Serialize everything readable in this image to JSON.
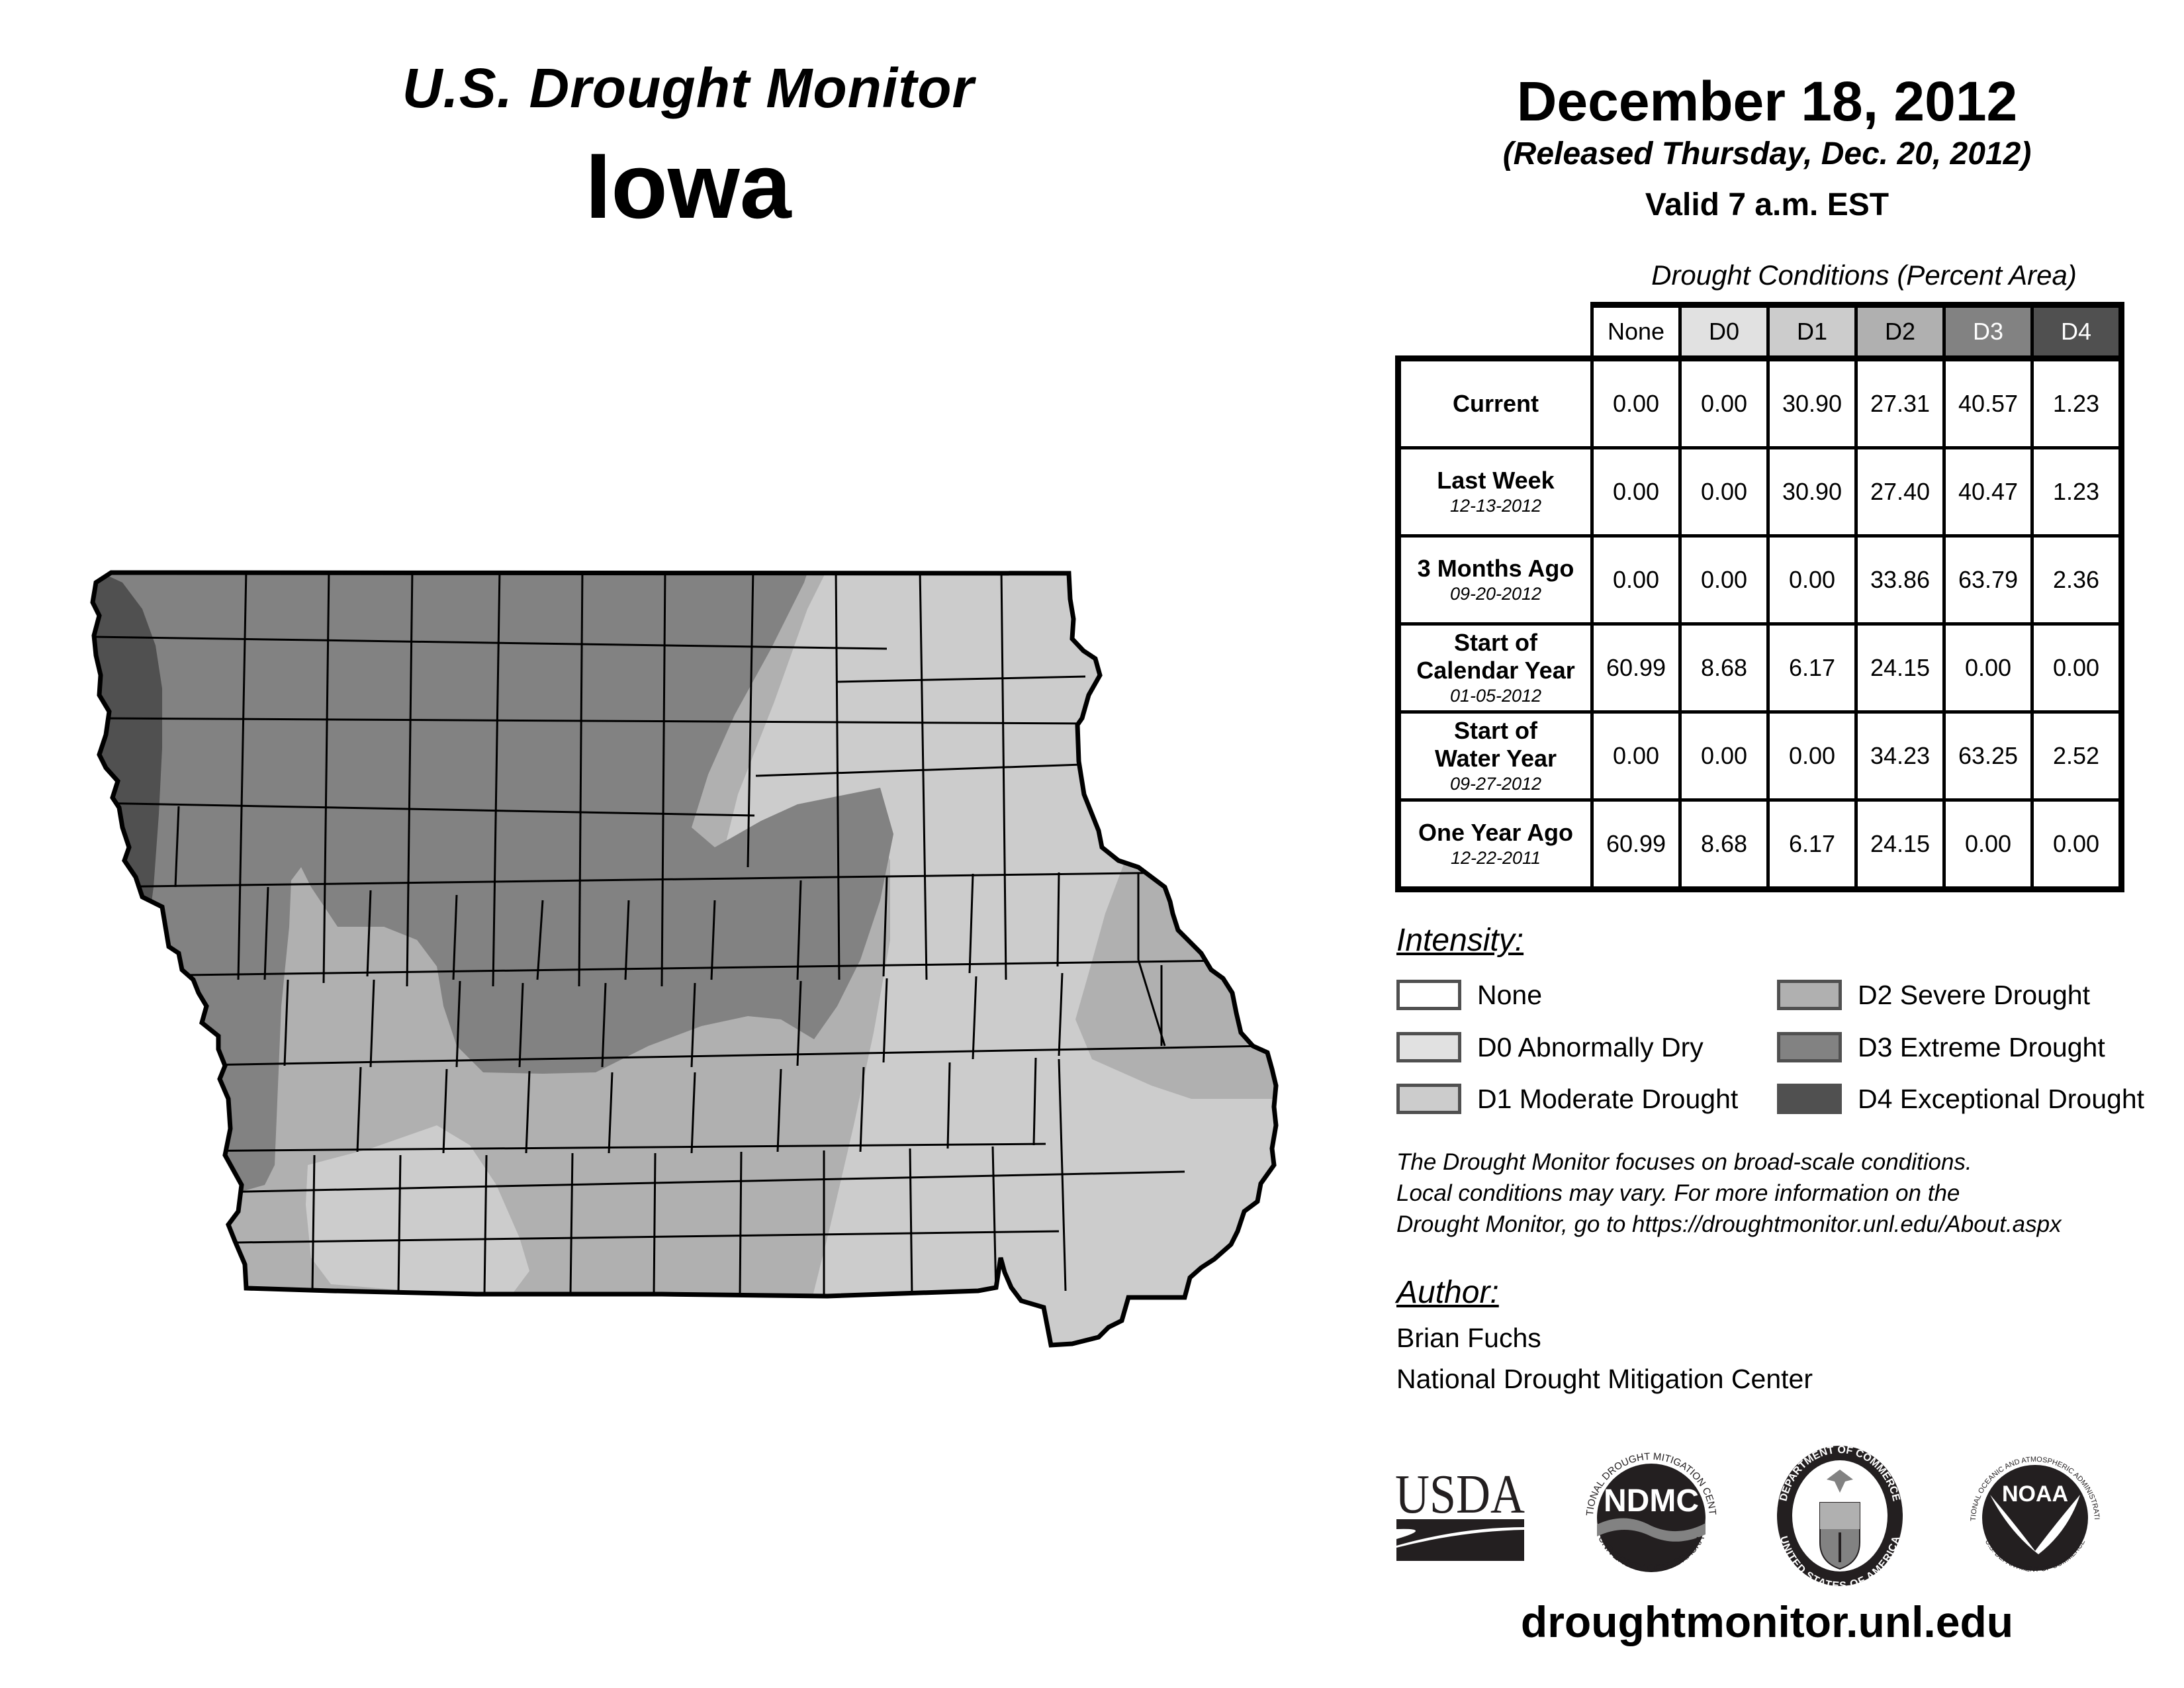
{
  "header": {
    "title": "U.S. Drought Monitor",
    "state": "Iowa",
    "date": "December 18, 2012",
    "released": "(Released Thursday, Dec. 20, 2012)",
    "valid": "Valid 7 a.m. EST"
  },
  "table": {
    "caption": "Drought Conditions (Percent Area)",
    "columns": [
      "None",
      "D0",
      "D1",
      "D2",
      "D3",
      "D4"
    ],
    "rows": [
      {
        "label": "Current",
        "date": "",
        "values": [
          "0.00",
          "0.00",
          "30.90",
          "27.31",
          "40.57",
          "1.23"
        ]
      },
      {
        "label": "Last Week",
        "date": "12-13-2012",
        "values": [
          "0.00",
          "0.00",
          "30.90",
          "27.40",
          "40.47",
          "1.23"
        ]
      },
      {
        "label": "3 Months Ago",
        "date": "09-20-2012",
        "values": [
          "0.00",
          "0.00",
          "0.00",
          "33.86",
          "63.79",
          "2.36"
        ]
      },
      {
        "label": "Start of Calendar Year",
        "date": "01-05-2012",
        "values": [
          "60.99",
          "8.68",
          "6.17",
          "24.15",
          "0.00",
          "0.00"
        ]
      },
      {
        "label": "Start of Water Year",
        "date": "09-27-2012",
        "values": [
          "0.00",
          "0.00",
          "0.00",
          "34.23",
          "63.25",
          "2.52"
        ]
      },
      {
        "label": "One Year Ago",
        "date": "12-22-2011",
        "values": [
          "60.99",
          "8.68",
          "6.17",
          "24.15",
          "0.00",
          "0.00"
        ]
      }
    ]
  },
  "legend": {
    "title": "Intensity:",
    "items": [
      {
        "label": "None",
        "color": "#ffffff"
      },
      {
        "label": "D0 Abnormally Dry",
        "color": "#e1e1e1"
      },
      {
        "label": "D1 Moderate Drought",
        "color": "#cccccc"
      },
      {
        "label": "D2 Severe Drought",
        "color": "#b0b0b0"
      },
      {
        "label": "D3 Extreme Drought",
        "color": "#828282"
      },
      {
        "label": "D4 Exceptional Drought",
        "color": "#505050"
      }
    ]
  },
  "notes": {
    "line1": "The Drought Monitor focuses on broad-scale conditions.",
    "line2": "Local conditions may vary. For more information on the",
    "line3": "Drought Monitor, go to https://droughtmonitor.unl.edu/About.aspx"
  },
  "author": {
    "title": "Author:",
    "name": "Brian Fuchs",
    "org": "National Drought Mitigation Center"
  },
  "logos": {
    "usda": "USDA",
    "ndmc": "NDMC",
    "ndmc_ring_top": "NATIONAL DROUGHT MITIGATION CENTER",
    "ndmc_ring_bottom": "UNIVERSITY OF NEBRASKA",
    "doc_ring_top": "DEPARTMENT OF COMMERCE",
    "doc_ring_bottom": "UNITED STATES OF AMERICA",
    "noaa": "NOAA",
    "noaa_ring_top": "NATIONAL OCEANIC AND ATMOSPHERIC ADMINISTRATION",
    "noaa_ring_bottom": "U.S. DEPARTMENT OF COMMERCE"
  },
  "footer": {
    "url": "droughtmonitor.unl.edu"
  }
}
